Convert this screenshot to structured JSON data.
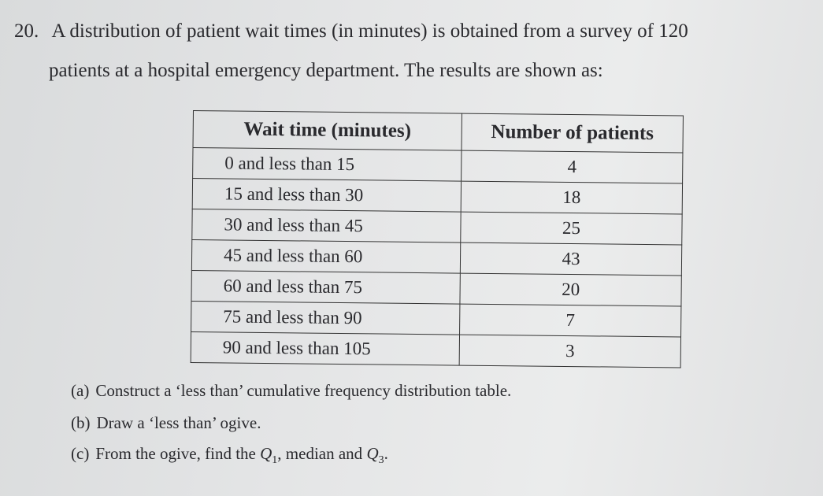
{
  "question": {
    "number": "20.",
    "intro": [
      "A distribution of patient wait times (in minutes) is obtained from a survey of 120",
      "patients at a hospital emergency department. The results are shown as:"
    ],
    "table": {
      "header": [
        "Wait time (minutes)",
        "Number of patients"
      ],
      "rows": [
        [
          "0 and less than 15",
          4
        ],
        [
          "15 and less than 30",
          18
        ],
        [
          "30 and less than 45",
          25
        ],
        [
          "45 and less than 60",
          43
        ],
        [
          "60 and less than 75",
          20
        ],
        [
          "75 and less than 90",
          7
        ],
        [
          "90 and less than 105",
          3
        ]
      ]
    },
    "parts": [
      {
        "label": "(a)",
        "text": [
          "Construct a ‘less than’ cumulative frequency distribution table."
        ]
      },
      {
        "label": "(b)",
        "text": [
          "Draw a ‘less than’ ogive."
        ]
      },
      {
        "label": "(c)",
        "text": [
          "From the ogive, find the ",
          "Q",
          "1",
          ", median and ",
          "Q",
          "3",
          "."
        ]
      }
    ]
  }
}
